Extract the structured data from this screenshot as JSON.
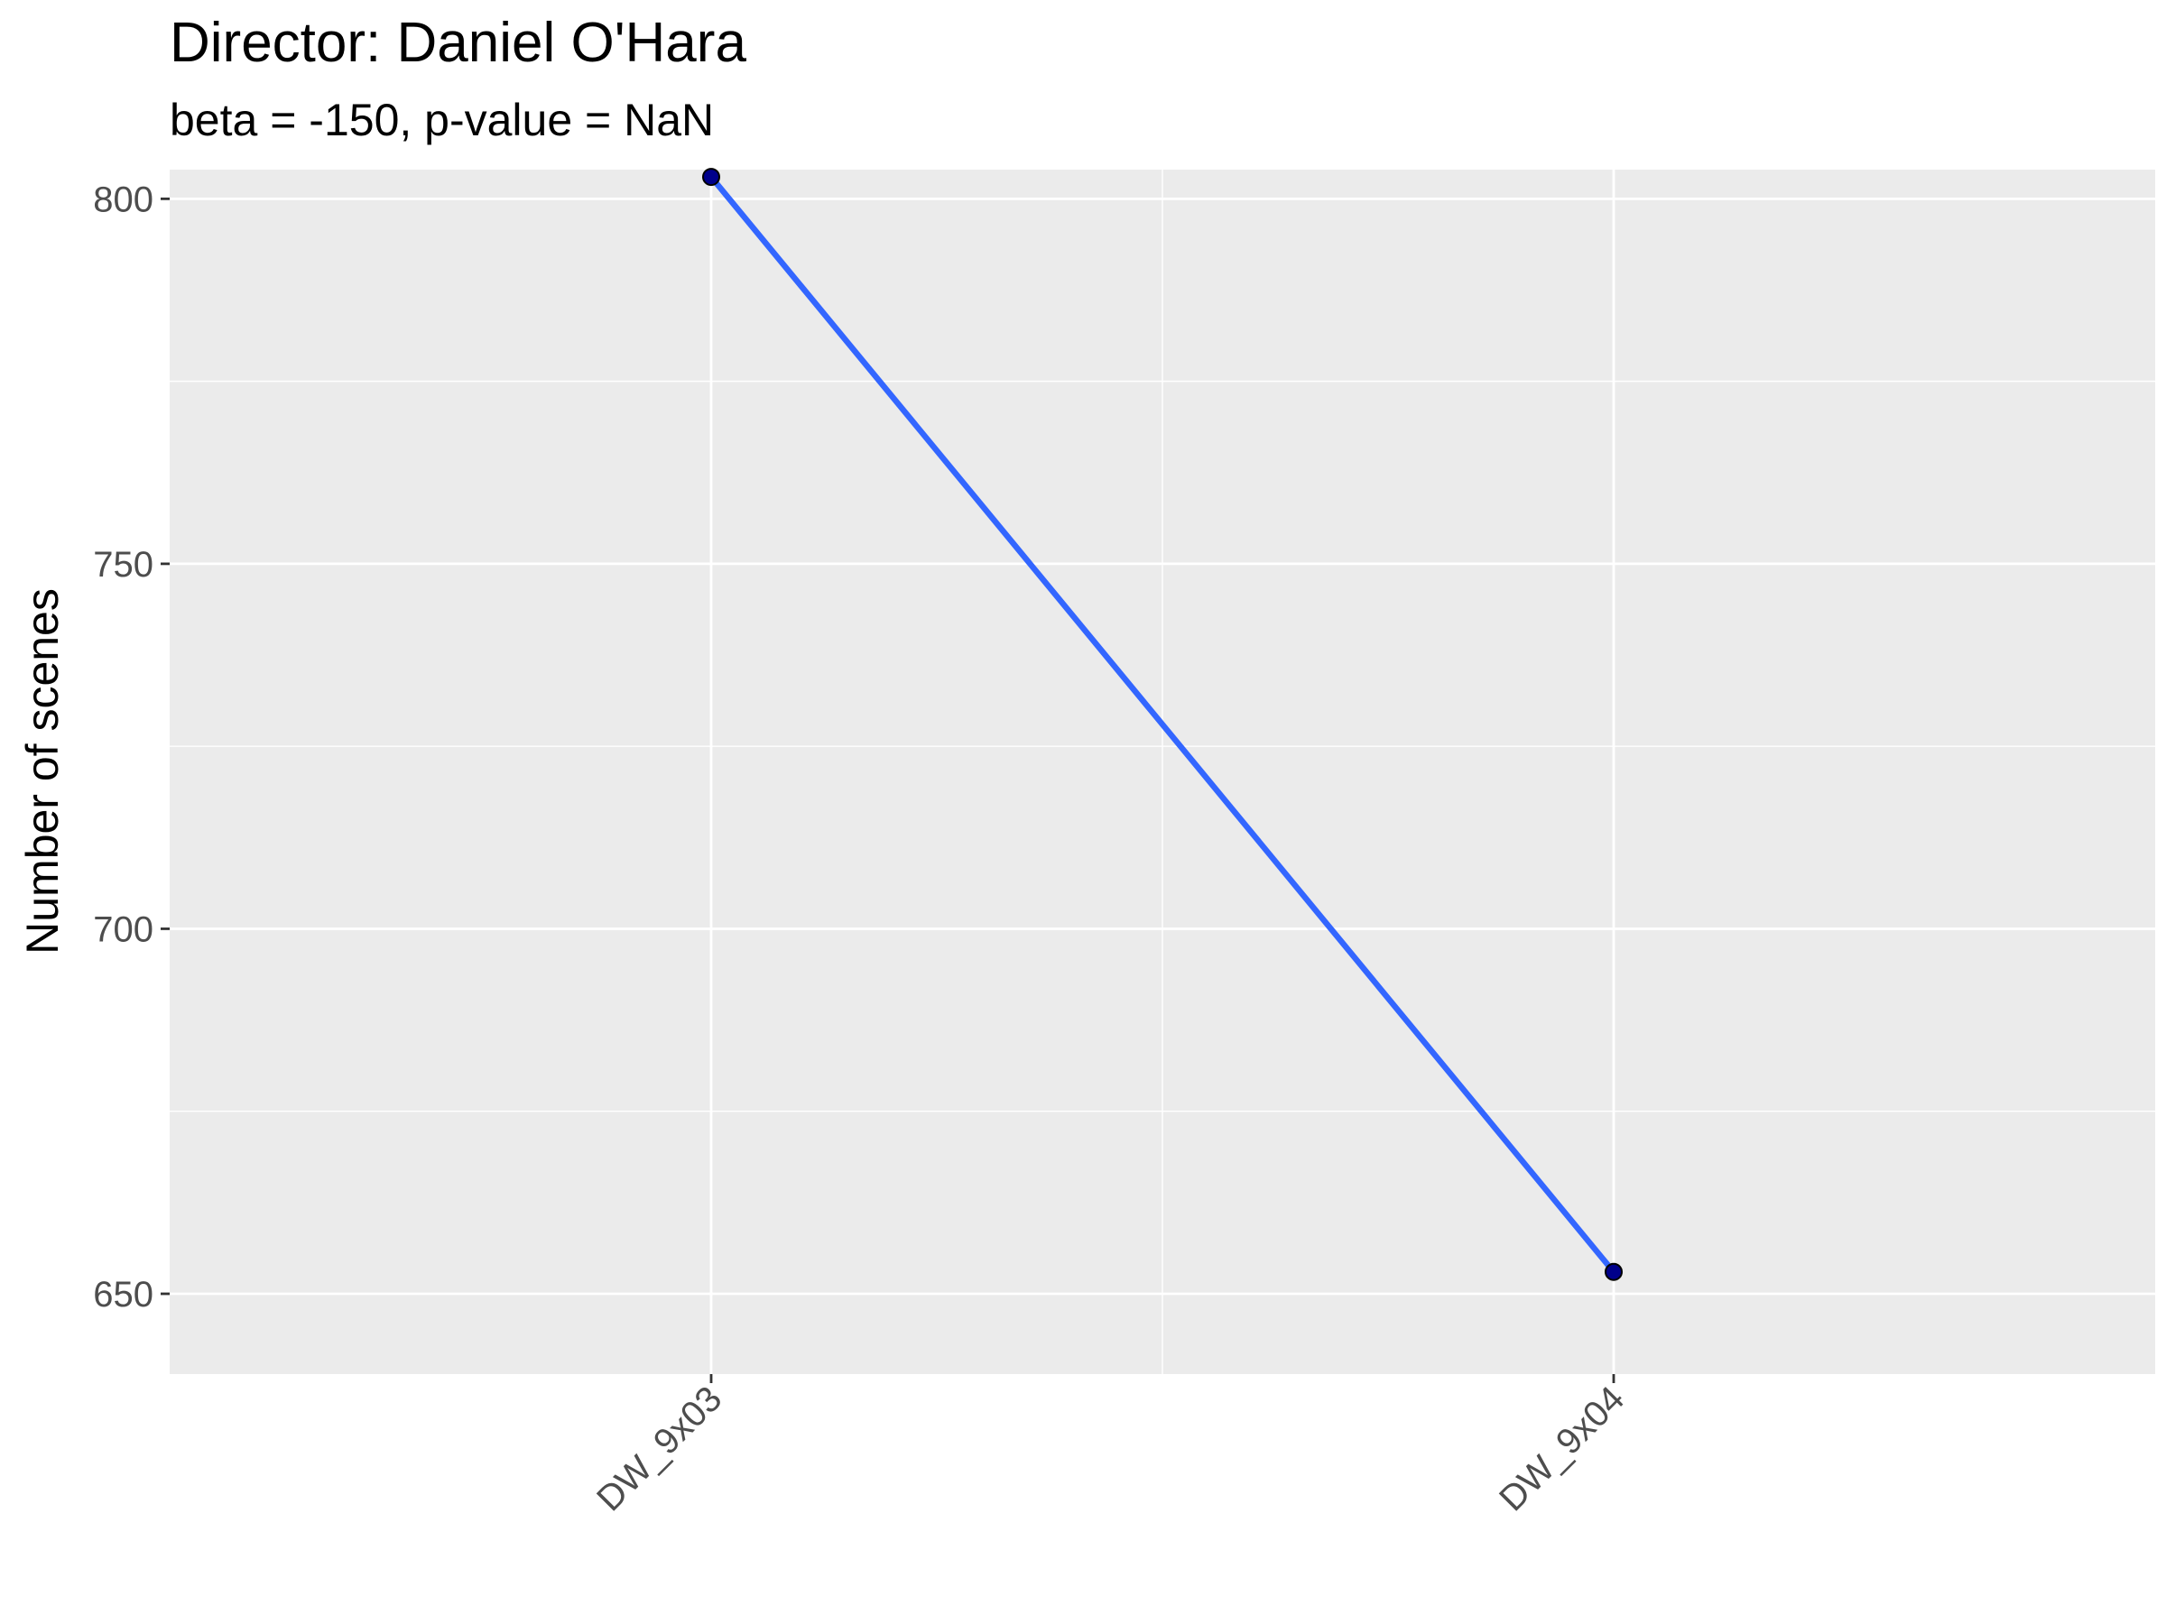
{
  "chart_data": {
    "type": "line",
    "title": "Director: Daniel O'Hara",
    "subtitle": "beta = -150, p-value = NaN",
    "xlabel": "",
    "ylabel": "Number of scenes",
    "categories": [
      "DW_9x03",
      "DW_9x04"
    ],
    "series": [
      {
        "values": [
          803,
          653
        ]
      }
    ],
    "ylim": [
      639,
      804
    ],
    "yticks": [
      650,
      700,
      750,
      800
    ],
    "grid": true,
    "legend": "none",
    "colors": {
      "line": "#3366ff",
      "point_fill": "#00008b",
      "panel_background": "#ebebeb",
      "grid": "#ffffff",
      "tick_text": "#4d4d4d"
    }
  }
}
